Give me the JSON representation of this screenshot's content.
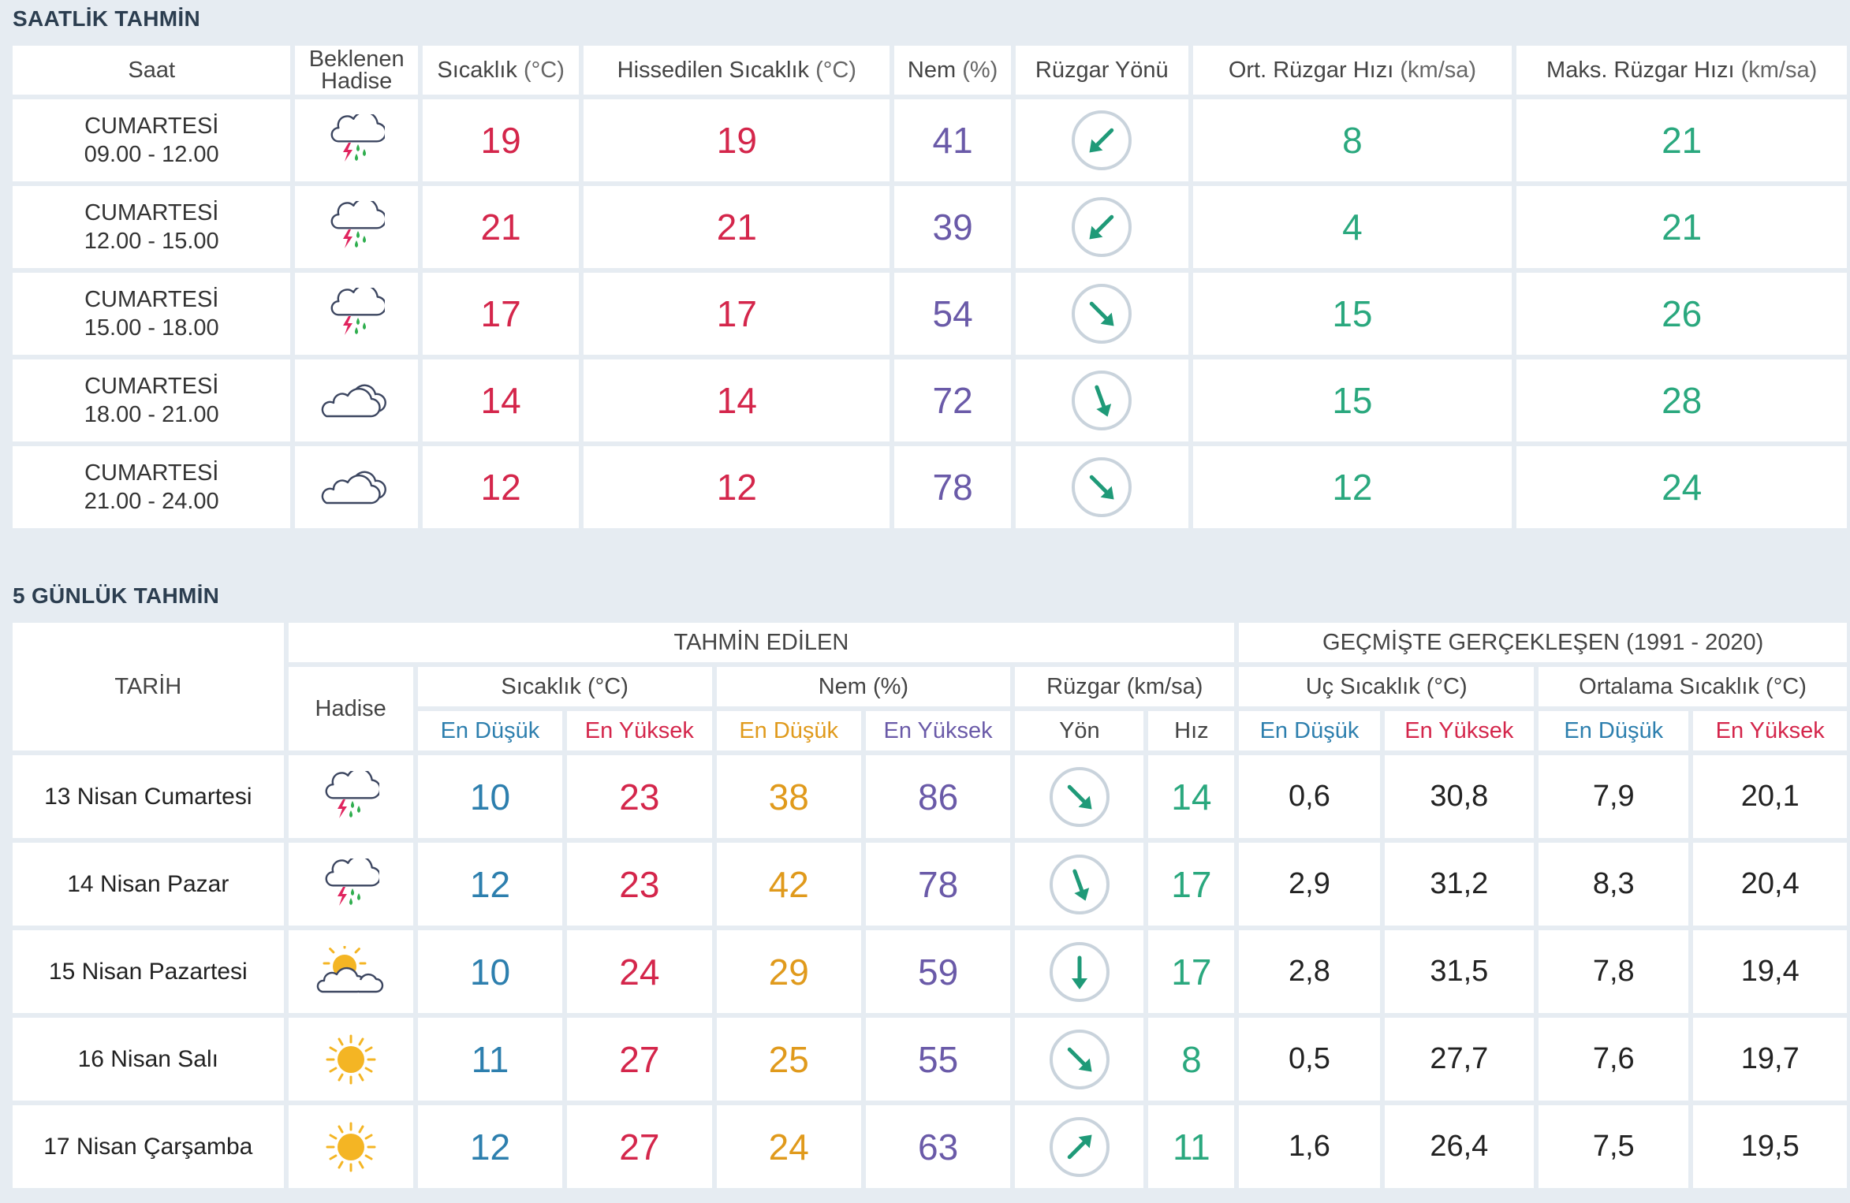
{
  "hourly": {
    "title": "SAATLİK TAHMİN",
    "headers": {
      "saat": "Saat",
      "hadise_1": "Beklenen",
      "hadise_2": "Hadise",
      "sicaklik": "Sıcaklık",
      "sicaklik_unit": "(°C)",
      "hissedilen": "Hissedilen Sıcaklık",
      "hissedilen_unit": "(°C)",
      "nem": "Nem",
      "nem_unit": "(%)",
      "ruzgar_yonu": "Rüzgar Yönü",
      "ort_ruzgar": "Ort. Rüzgar Hızı",
      "ort_ruzgar_unit": "(km/sa)",
      "maks_ruzgar": "Maks. Rüzgar Hızı",
      "maks_ruzgar_unit": "(km/sa)"
    },
    "rows": [
      {
        "day": "CUMARTESİ",
        "time": "09.00 - 12.00",
        "icon": "thunderstorm-rain-icon",
        "temp": "19",
        "feels": "19",
        "humidity": "41",
        "wind_dir": "southwest",
        "avg_wind": "8",
        "max_wind": "21"
      },
      {
        "day": "CUMARTESİ",
        "time": "12.00 - 15.00",
        "icon": "thunderstorm-rain-icon",
        "temp": "21",
        "feels": "21",
        "humidity": "39",
        "wind_dir": "southwest",
        "avg_wind": "4",
        "max_wind": "21"
      },
      {
        "day": "CUMARTESİ",
        "time": "15.00 - 18.00",
        "icon": "thunderstorm-rain-icon",
        "temp": "17",
        "feels": "17",
        "humidity": "54",
        "wind_dir": "southeast",
        "avg_wind": "15",
        "max_wind": "26"
      },
      {
        "day": "CUMARTESİ",
        "time": "18.00 - 21.00",
        "icon": "cloudy-icon",
        "temp": "14",
        "feels": "14",
        "humidity": "72",
        "wind_dir": "south-southeast",
        "avg_wind": "15",
        "max_wind": "28"
      },
      {
        "day": "CUMARTESİ",
        "time": "21.00 - 24.00",
        "icon": "cloudy-icon",
        "temp": "12",
        "feels": "12",
        "humidity": "78",
        "wind_dir": "southeast",
        "avg_wind": "12",
        "max_wind": "24"
      }
    ]
  },
  "daily": {
    "title": "5 GÜNLÜK TAHMİN",
    "headers": {
      "tarih": "TARİH",
      "tahmin_edilen": "TAHMİN EDİLEN",
      "gecmiste": "GEÇMİŞTE GERÇEKLEŞEN (1991 - 2020)",
      "hadise": "Hadise",
      "sicaklik": "Sıcaklık (°C)",
      "nem": "Nem (%)",
      "ruzgar": "Rüzgar (km/sa)",
      "uc_sicaklik": "Uç Sıcaklık (°C)",
      "ort_sicaklik": "Ortalama Sıcaklık (°C)",
      "en_dusuk": "En Düşük",
      "en_yuksek": "En Yüksek",
      "yon": "Yön",
      "hiz": "Hız"
    },
    "rows": [
      {
        "date": "13 Nisan Cumartesi",
        "icon": "thunderstorm-rain-icon",
        "tmin": "10",
        "tmax": "23",
        "hmin": "38",
        "hmax": "86",
        "wind_dir": "southeast",
        "wind_speed": "14",
        "ext_min": "0,6",
        "ext_max": "30,8",
        "avg_min": "7,9",
        "avg_max": "20,1"
      },
      {
        "date": "14 Nisan Pazar",
        "icon": "thunderstorm-rain-icon",
        "tmin": "12",
        "tmax": "23",
        "hmin": "42",
        "hmax": "78",
        "wind_dir": "south-southeast",
        "wind_speed": "17",
        "ext_min": "2,9",
        "ext_max": "31,2",
        "avg_min": "8,3",
        "avg_max": "20,4"
      },
      {
        "date": "15 Nisan Pazartesi",
        "icon": "partly-cloudy-icon",
        "tmin": "10",
        "tmax": "24",
        "hmin": "29",
        "hmax": "59",
        "wind_dir": "south",
        "wind_speed": "17",
        "ext_min": "2,8",
        "ext_max": "31,5",
        "avg_min": "7,8",
        "avg_max": "19,4"
      },
      {
        "date": "16 Nisan Salı",
        "icon": "sunny-icon",
        "tmin": "11",
        "tmax": "27",
        "hmin": "25",
        "hmax": "55",
        "wind_dir": "southeast",
        "wind_speed": "8",
        "ext_min": "0,5",
        "ext_max": "27,7",
        "avg_min": "7,6",
        "avg_max": "19,7"
      },
      {
        "date": "17 Nisan Çarşamba",
        "icon": "sunny-icon",
        "tmin": "12",
        "tmax": "27",
        "hmin": "24",
        "hmax": "63",
        "wind_dir": "northeast",
        "wind_speed": "11",
        "ext_min": "1,6",
        "ext_max": "26,4",
        "avg_min": "7,5",
        "avg_max": "19,5"
      }
    ]
  },
  "colors": {
    "temperature": "#d4264b",
    "humidity": "#6a5aa8",
    "wind": "#2aa87e",
    "low": "#2d7fae",
    "humidity_low": "#e09a1c"
  }
}
